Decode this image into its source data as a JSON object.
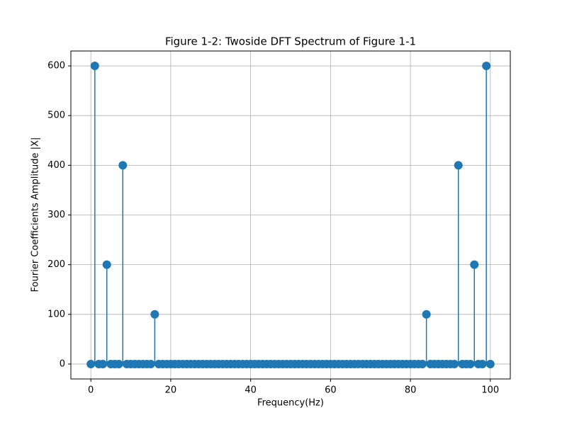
{
  "chart_data": {
    "type": "stem",
    "title": "Figure 1-2: Twoside DFT Spectrum of Figure 1-1",
    "xlabel": "Frequency(Hz)",
    "ylabel": "Fourier Coefficients Amplitude |X|",
    "x": [
      0,
      1,
      2,
      3,
      4,
      5,
      6,
      7,
      8,
      9,
      10,
      11,
      12,
      13,
      14,
      15,
      16,
      17,
      18,
      19,
      20,
      21,
      22,
      23,
      24,
      25,
      26,
      27,
      28,
      29,
      30,
      31,
      32,
      33,
      34,
      35,
      36,
      37,
      38,
      39,
      40,
      41,
      42,
      43,
      44,
      45,
      46,
      47,
      48,
      49,
      50,
      51,
      52,
      53,
      54,
      55,
      56,
      57,
      58,
      59,
      60,
      61,
      62,
      63,
      64,
      65,
      66,
      67,
      68,
      69,
      70,
      71,
      72,
      73,
      74,
      75,
      76,
      77,
      78,
      79,
      80,
      81,
      82,
      83,
      84,
      85,
      86,
      87,
      88,
      89,
      90,
      91,
      92,
      93,
      94,
      95,
      96,
      97,
      98,
      99,
      100
    ],
    "values": [
      0,
      600,
      0,
      0,
      200,
      0,
      0,
      0,
      400,
      0,
      0,
      0,
      0,
      0,
      0,
      0,
      100,
      0,
      0,
      0,
      0,
      0,
      0,
      0,
      0,
      0,
      0,
      0,
      0,
      0,
      0,
      0,
      0,
      0,
      0,
      0,
      0,
      0,
      0,
      0,
      0,
      0,
      0,
      0,
      0,
      0,
      0,
      0,
      0,
      0,
      0,
      0,
      0,
      0,
      0,
      0,
      0,
      0,
      0,
      0,
      0,
      0,
      0,
      0,
      0,
      0,
      0,
      0,
      0,
      0,
      0,
      0,
      0,
      0,
      0,
      0,
      0,
      0,
      0,
      0,
      0,
      0,
      0,
      0,
      100,
      0,
      0,
      0,
      0,
      0,
      0,
      0,
      400,
      0,
      0,
      0,
      200,
      0,
      0,
      600,
      0
    ],
    "color": "#1f77b4",
    "baseline_color": "#d62728",
    "xlim": [
      -5,
      105
    ],
    "xticks": [
      0,
      20,
      40,
      60,
      80,
      100
    ],
    "ylim": [
      -30,
      630
    ],
    "yticks": [
      0,
      100,
      200,
      300,
      400,
      500,
      600
    ],
    "grid": true
  }
}
